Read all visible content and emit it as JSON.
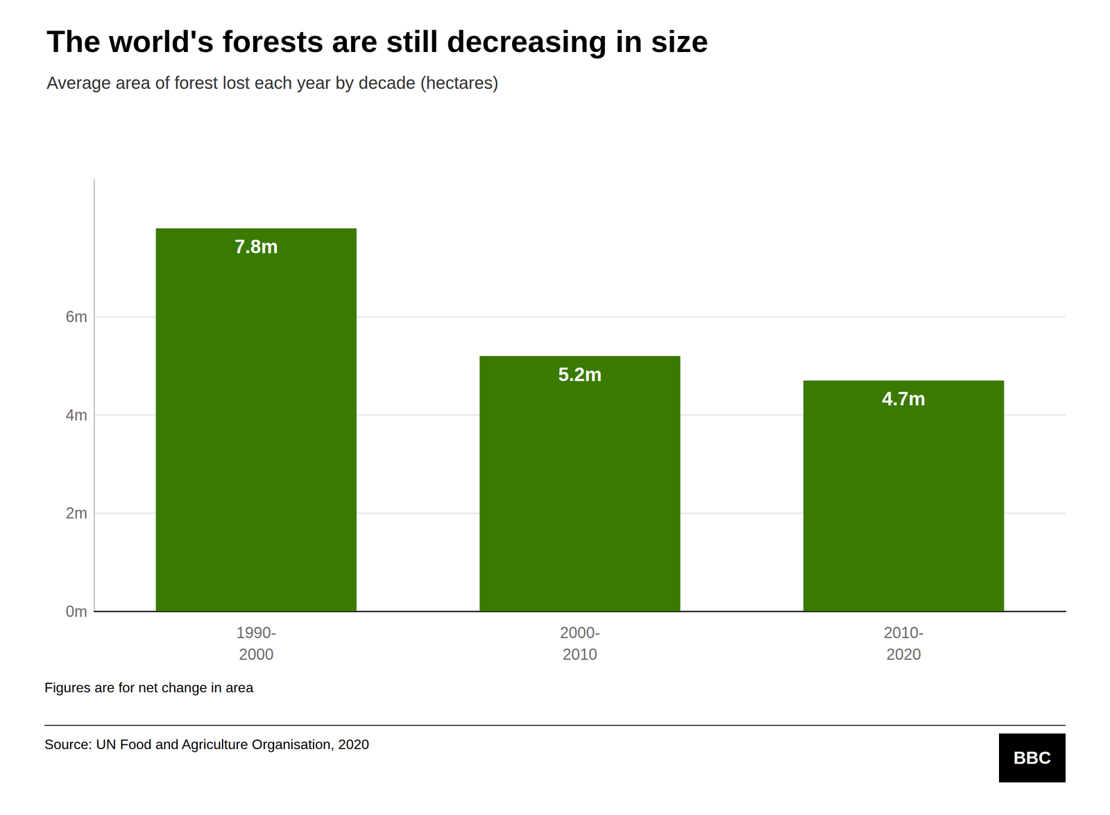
{
  "chart_data": {
    "type": "bar",
    "title": "The world's forests are still decreasing in size",
    "subtitle": "Average area of forest lost each year by decade (hectares)",
    "categories": [
      "1990-\n2000",
      "2000-\n2010",
      "2010-\n2020"
    ],
    "values": [
      7.8,
      5.2,
      4.7
    ],
    "value_labels": [
      "7.8m",
      "5.2m",
      "4.7m"
    ],
    "data_labels": true,
    "color": "#3a7a00",
    "ylim": [
      0,
      8.8
    ],
    "yticks": [
      {
        "value": 0,
        "label": "0m"
      },
      {
        "value": 2,
        "label": "2m"
      },
      {
        "value": 4,
        "label": "4m"
      },
      {
        "value": 6,
        "label": "6m"
      }
    ],
    "grid": true,
    "footnote": "Figures are for net change in area",
    "source": "Source: UN Food and Agriculture Organisation, 2020",
    "logo": "BBC"
  }
}
